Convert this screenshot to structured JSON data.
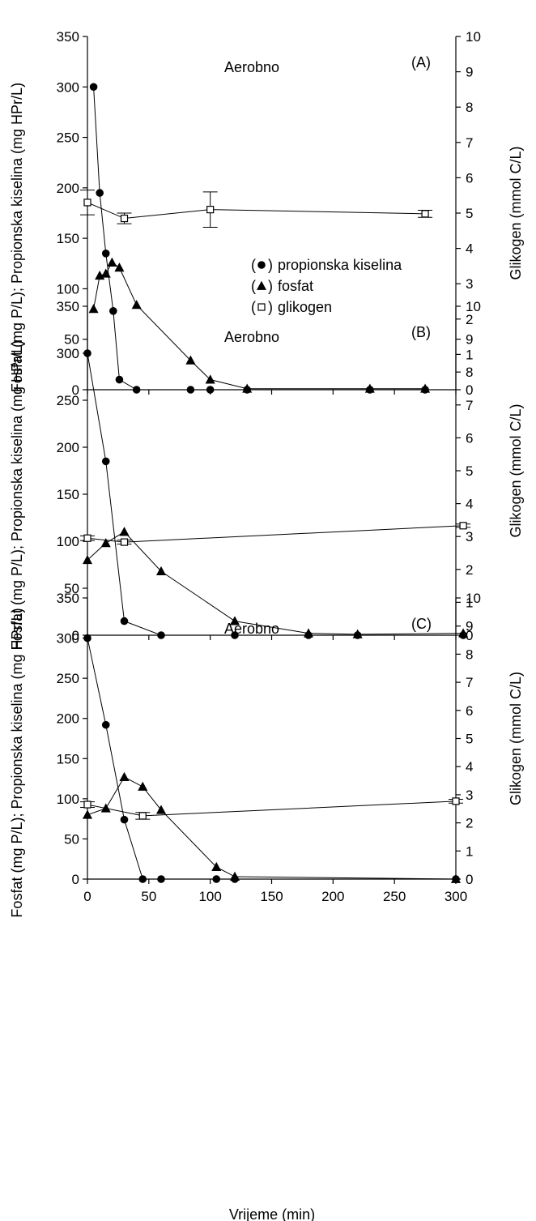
{
  "xlabel": "Vrijeme (min)",
  "legend": [
    {
      "symbol": "●",
      "label": "propionska kiselina",
      "marker": "circle"
    },
    {
      "symbol": "▲",
      "label": "fosfat",
      "marker": "triangle"
    },
    {
      "symbol": "□",
      "label": "glikogen",
      "marker": "square"
    }
  ],
  "chart_data": [
    {
      "type": "line",
      "panel_label": "(A)",
      "annotation": "Aerobno",
      "ylabel": "Fosfat (mg P/L); Propionska kiselina (mg HPr/L)",
      "y2label": "Glikogen (mmol C/L)",
      "xlim": [
        0,
        300
      ],
      "ylim": [
        0,
        350
      ],
      "y2lim": [
        0,
        10
      ],
      "xticks": [
        0,
        50,
        100,
        150,
        200,
        250,
        300
      ],
      "yticks": [
        0,
        50,
        100,
        150,
        200,
        250,
        300,
        350
      ],
      "y2ticks": [
        0,
        1,
        2,
        3,
        4,
        5,
        6,
        7,
        8,
        9,
        10
      ],
      "series": [
        {
          "name": "propionska kiselina",
          "marker": "circle",
          "axis": "left",
          "x": [
            5,
            10,
            15,
            21,
            26,
            40,
            84,
            100,
            130,
            230,
            275
          ],
          "y": [
            300,
            195,
            135,
            78,
            10,
            0,
            0,
            0,
            0,
            0,
            0
          ]
        },
        {
          "name": "fosfat",
          "marker": "triangle",
          "axis": "left",
          "x": [
            5,
            10,
            15,
            20,
            26,
            40,
            84,
            100,
            130,
            230,
            275
          ],
          "y": [
            80,
            113,
            115,
            126,
            121,
            84,
            29,
            10,
            1,
            1,
            1
          ]
        },
        {
          "name": "glikogen",
          "marker": "square",
          "axis": "right",
          "x": [
            0,
            30,
            100,
            275
          ],
          "y": [
            5.3,
            4.85,
            5.1,
            4.98
          ],
          "err": [
            0.35,
            0.15,
            0.5,
            0.1
          ]
        }
      ]
    },
    {
      "type": "line",
      "panel_label": "(B)",
      "annotation": "Aerobno",
      "ylabel": "Fosfat (mg P/L); Propionska kiselina (mg HPr/L)",
      "y2label": "Glikogen (mmol C/L)",
      "xlim": [
        0,
        300
      ],
      "ylim": [
        0,
        350
      ],
      "y2lim": [
        0,
        10
      ],
      "xticks": [
        0,
        50,
        100,
        150,
        200,
        250,
        300
      ],
      "yticks": [
        0,
        50,
        100,
        150,
        200,
        250,
        300,
        350
      ],
      "y2ticks": [
        0,
        1,
        2,
        3,
        4,
        5,
        6,
        7,
        8,
        9,
        10
      ],
      "series": [
        {
          "name": "propionska kiselina",
          "marker": "circle",
          "axis": "left",
          "x": [
            0,
            15,
            30,
            60,
            120,
            180,
            220,
            340
          ],
          "y": [
            300,
            185,
            15,
            0,
            0,
            0,
            0,
            0
          ]
        },
        {
          "name": "fosfat",
          "marker": "triangle",
          "axis": "left",
          "x": [
            0,
            15,
            30,
            60,
            120,
            180,
            220,
            340
          ],
          "y": [
            80,
            98,
            110,
            68,
            15,
            2,
            1,
            2
          ]
        },
        {
          "name": "glikogen",
          "marker": "square",
          "axis": "right",
          "x": [
            0,
            30,
            340
          ],
          "y": [
            2.95,
            2.83,
            3.33
          ],
          "err": [
            0.07,
            0.06,
            0.05
          ]
        }
      ]
    },
    {
      "type": "line",
      "panel_label": "(C)",
      "annotation": "Aerobno",
      "ylabel": "Fosfat (mg P/L); Propionska kiselina (mg HPr/L)",
      "y2label": "Glikogen (mmol C/L)",
      "xlim": [
        0,
        300
      ],
      "ylim": [
        0,
        350
      ],
      "y2lim": [
        0,
        10
      ],
      "xticks": [
        0,
        50,
        100,
        150,
        200,
        250,
        300
      ],
      "yticks": [
        0,
        50,
        100,
        150,
        200,
        250,
        300,
        350
      ],
      "y2ticks": [
        0,
        1,
        2,
        3,
        4,
        5,
        6,
        7,
        8,
        9,
        10
      ],
      "series": [
        {
          "name": "propionska kiselina",
          "marker": "circle",
          "axis": "left",
          "x": [
            0,
            15,
            30,
            45,
            60,
            105,
            120,
            300
          ],
          "y": [
            300,
            192,
            74,
            0,
            0,
            0,
            0,
            0
          ]
        },
        {
          "name": "fosfat",
          "marker": "triangle",
          "axis": "left",
          "x": [
            0,
            15,
            30,
            45,
            60,
            105,
            120,
            300
          ],
          "y": [
            80,
            88,
            127,
            115,
            86,
            15,
            3,
            0
          ]
        },
        {
          "name": "glikogen",
          "marker": "square",
          "axis": "right",
          "x": [
            0,
            45,
            300
          ],
          "y": [
            2.65,
            2.25,
            2.77
          ],
          "err": [
            0.1,
            0.12,
            0.07
          ]
        }
      ]
    }
  ]
}
